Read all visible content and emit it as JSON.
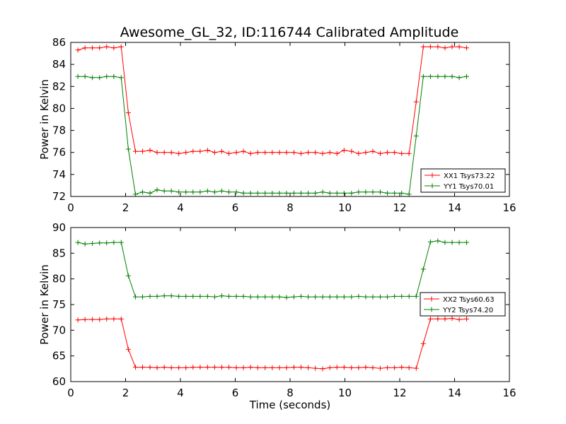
{
  "figure_title": "Awesome_GL_32, ID:116744 Calibrated Amplitude",
  "chart_data": [
    {
      "type": "line",
      "title": "",
      "xlabel": "",
      "ylabel": "Power in Kelvin",
      "xlim": [
        0,
        16
      ],
      "ylim": [
        72,
        86
      ],
      "xticks": [
        0,
        2,
        4,
        6,
        8,
        10,
        12,
        14,
        16
      ],
      "yticks": [
        72,
        74,
        76,
        78,
        80,
        82,
        84,
        86
      ],
      "grid": false,
      "legend_position": "lower-right",
      "x": [
        0.26,
        0.52,
        0.79,
        1.05,
        1.31,
        1.57,
        1.84,
        2.1,
        2.36,
        2.62,
        2.89,
        3.15,
        3.41,
        3.67,
        3.94,
        4.2,
        4.46,
        4.72,
        4.99,
        5.25,
        5.51,
        5.77,
        6.04,
        6.3,
        6.56,
        6.82,
        7.09,
        7.35,
        7.61,
        7.87,
        8.14,
        8.4,
        8.66,
        8.92,
        9.19,
        9.45,
        9.71,
        9.97,
        10.24,
        10.5,
        10.76,
        11.02,
        11.29,
        11.55,
        11.81,
        12.07,
        12.34,
        12.6,
        12.86,
        13.12,
        13.39,
        13.65,
        13.91,
        14.17,
        14.44
      ],
      "series": [
        {
          "name": "XX1 Tsys73.22",
          "color": "#ff0000",
          "values": [
            85.3,
            85.5,
            85.5,
            85.5,
            85.6,
            85.5,
            85.6,
            79.6,
            76.1,
            76.1,
            76.2,
            76.0,
            76.0,
            76.0,
            75.9,
            76.0,
            76.1,
            76.1,
            76.2,
            76.0,
            76.1,
            75.9,
            76.0,
            76.1,
            75.9,
            76.0,
            76.0,
            76.0,
            76.0,
            76.0,
            76.0,
            75.9,
            76.0,
            76.0,
            75.9,
            76.0,
            75.9,
            76.2,
            76.1,
            75.9,
            76.0,
            76.1,
            75.9,
            76.0,
            76.0,
            75.9,
            75.9,
            80.6,
            85.6,
            85.6,
            85.6,
            85.5,
            85.6,
            85.6,
            85.5
          ]
        },
        {
          "name": "YY1 Tsys70.01",
          "color": "#008000",
          "values": [
            82.9,
            82.9,
            82.8,
            82.8,
            82.9,
            82.9,
            82.8,
            76.3,
            72.2,
            72.4,
            72.3,
            72.6,
            72.5,
            72.5,
            72.4,
            72.4,
            72.4,
            72.4,
            72.5,
            72.4,
            72.5,
            72.4,
            72.4,
            72.3,
            72.3,
            72.3,
            72.3,
            72.3,
            72.3,
            72.3,
            72.3,
            72.3,
            72.3,
            72.3,
            72.4,
            72.3,
            72.3,
            72.3,
            72.3,
            72.4,
            72.4,
            72.4,
            72.4,
            72.3,
            72.3,
            72.3,
            72.2,
            77.5,
            82.9,
            82.9,
            82.9,
            82.9,
            82.9,
            82.8,
            82.9
          ]
        }
      ]
    },
    {
      "type": "line",
      "title": "",
      "xlabel": "Time (seconds)",
      "ylabel": "Power in Kelvin",
      "xlim": [
        0,
        16
      ],
      "ylim": [
        60,
        90
      ],
      "xticks": [
        0,
        2,
        4,
        6,
        8,
        10,
        12,
        14,
        16
      ],
      "yticks": [
        60,
        65,
        70,
        75,
        80,
        85,
        90
      ],
      "grid": false,
      "legend_position": "right",
      "x": [
        0.26,
        0.52,
        0.79,
        1.05,
        1.31,
        1.57,
        1.84,
        2.1,
        2.36,
        2.62,
        2.89,
        3.15,
        3.41,
        3.67,
        3.94,
        4.2,
        4.46,
        4.72,
        4.99,
        5.25,
        5.51,
        5.77,
        6.04,
        6.3,
        6.56,
        6.82,
        7.09,
        7.35,
        7.61,
        7.87,
        8.14,
        8.4,
        8.66,
        8.92,
        9.19,
        9.45,
        9.71,
        9.97,
        10.24,
        10.5,
        10.76,
        11.02,
        11.29,
        11.55,
        11.81,
        12.07,
        12.34,
        12.6,
        12.86,
        13.12,
        13.39,
        13.65,
        13.91,
        14.17,
        14.44
      ],
      "series": [
        {
          "name": "XX2 Tsys60.63",
          "color": "#ff0000",
          "values": [
            72.0,
            72.1,
            72.1,
            72.1,
            72.2,
            72.2,
            72.2,
            66.3,
            62.8,
            62.8,
            62.8,
            62.7,
            62.8,
            62.7,
            62.7,
            62.7,
            62.8,
            62.8,
            62.8,
            62.8,
            62.8,
            62.8,
            62.7,
            62.7,
            62.8,
            62.7,
            62.7,
            62.7,
            62.7,
            62.7,
            62.8,
            62.8,
            62.7,
            62.6,
            62.5,
            62.7,
            62.8,
            62.8,
            62.7,
            62.7,
            62.8,
            62.7,
            62.6,
            62.7,
            62.7,
            62.8,
            62.7,
            62.6,
            67.4,
            72.2,
            72.2,
            72.2,
            72.3,
            72.1,
            72.2
          ]
        },
        {
          "name": "YY2 Tsys74.20",
          "color": "#008000",
          "values": [
            87.1,
            86.8,
            86.9,
            87.0,
            87.0,
            87.1,
            87.1,
            80.6,
            76.5,
            76.5,
            76.6,
            76.6,
            76.7,
            76.7,
            76.6,
            76.6,
            76.6,
            76.6,
            76.6,
            76.5,
            76.7,
            76.6,
            76.6,
            76.6,
            76.5,
            76.5,
            76.5,
            76.5,
            76.5,
            76.4,
            76.5,
            76.6,
            76.5,
            76.5,
            76.5,
            76.5,
            76.5,
            76.5,
            76.5,
            76.6,
            76.5,
            76.5,
            76.5,
            76.5,
            76.6,
            76.6,
            76.6,
            76.6,
            81.9,
            87.2,
            87.4,
            87.1,
            87.1,
            87.1,
            87.1
          ]
        }
      ]
    }
  ]
}
